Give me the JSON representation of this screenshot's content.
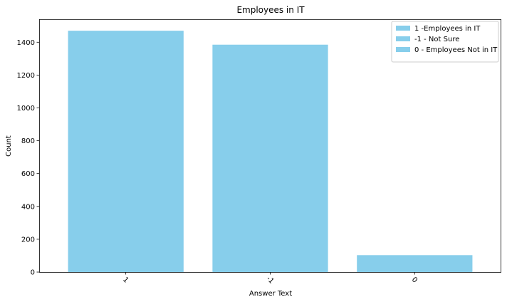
{
  "chart_data": {
    "type": "bar",
    "title": "Employees in IT",
    "xlabel": "Answer Text",
    "ylabel": "Count",
    "categories": [
      "1",
      "-1",
      "0"
    ],
    "values": [
      1470,
      1385,
      103
    ],
    "ylim": [
      0,
      1540
    ],
    "yticks": [
      0,
      200,
      400,
      600,
      800,
      1000,
      1200,
      1400
    ],
    "ytick_labels": [
      "0",
      "200",
      "400",
      "600",
      "800",
      "1000",
      "1200",
      "1400"
    ],
    "xtick_rotation_deg": 45,
    "bar_color": "#87ceeb",
    "grid": false,
    "legend": {
      "placement": "top-right",
      "entries": [
        "1 -Employees in IT",
        "-1 - Not Sure",
        "0 - Employees Not in IT"
      ]
    }
  }
}
